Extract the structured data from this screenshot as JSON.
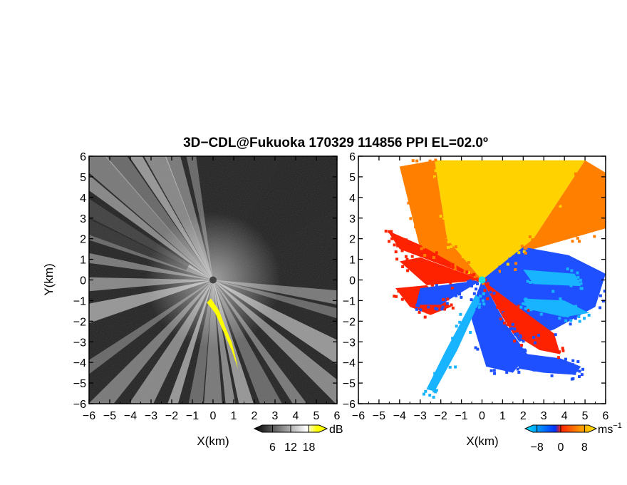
{
  "title": "3D−CDL@Fukuoka 170329 114856 PPI EL=02.0º",
  "chart_data": [
    {
      "type": "heatmap",
      "field": "backscatter",
      "xlabel": "X(km)",
      "ylabel": "Y(km)",
      "xlim": [
        -6,
        6
      ],
      "ylim": [
        -6,
        6
      ],
      "xticks": [
        "−6",
        "−5",
        "−4",
        "−3",
        "−2",
        "−1",
        "0",
        "1",
        "2",
        "3",
        "4",
        "5",
        "6"
      ],
      "yticks": [
        "−6",
        "−5",
        "−4",
        "−3",
        "−2",
        "−1",
        "0",
        "1",
        "2",
        "3",
        "4",
        "5",
        "6"
      ],
      "colorbar": {
        "unit": "dB",
        "ticks": [
          "6",
          "12",
          "18"
        ],
        "range": [
          0,
          24
        ],
        "colors": [
          "#000000",
          "#ffffff",
          "#ffff00"
        ]
      },
      "colors": {
        "background": "#1e1e1e",
        "beam": "#e8e8e8",
        "strong": "#ffff00"
      },
      "beams_deg": [
        100,
        108,
        115,
        122,
        128,
        135,
        142,
        150,
        158,
        170,
        182,
        195,
        215,
        228,
        240,
        252,
        262,
        270,
        278,
        285,
        295,
        305,
        318,
        330,
        345,
        352
      ],
      "shadow_sectors_deg": [
        [
          300,
          330
        ],
        [
          200,
          215
        ]
      ],
      "strong_echo": [
        [
          -0.1,
          -0.9
        ],
        [
          0.3,
          -1.5
        ],
        [
          0.6,
          -2.3
        ],
        [
          0.9,
          -3.0
        ],
        [
          1.1,
          -3.8
        ],
        [
          1.2,
          -4.3
        ],
        [
          0.9,
          -3.4
        ],
        [
          0.5,
          -2.5
        ],
        [
          0.1,
          -1.6
        ],
        [
          -0.3,
          -1.1
        ]
      ]
    },
    {
      "type": "heatmap",
      "field": "radial_velocity",
      "xlabel": "X(km)",
      "xlim": [
        -6,
        6
      ],
      "ylim": [
        -6,
        6
      ],
      "xticks": [
        "−6",
        "−5",
        "−4",
        "−3",
        "−2",
        "−1",
        "0",
        "1",
        "2",
        "3",
        "4",
        "5",
        "6"
      ],
      "yticks": [
        "−6",
        "−5",
        "−4",
        "−3",
        "−2",
        "−1",
        "0",
        "1",
        "2",
        "3",
        "4",
        "5",
        "6"
      ],
      "colorbar": {
        "unit": "ms",
        "unit_sup": "−1",
        "ticks": [
          "−8",
          "0",
          "8"
        ],
        "range": [
          -12,
          12
        ],
        "colors": [
          "#00e5ff",
          "#0033ff",
          "#ff2200",
          "#ffee00"
        ]
      },
      "colors": {
        "yellow": "#ffd200",
        "orange": "#ff8000",
        "red": "#ff2200",
        "blue": "#1e50ff",
        "cyan": "#19b4ff"
      },
      "regions": [
        {
          "color": "yellow",
          "poly": [
            [
              -2.3,
              5.8
            ],
            [
              5.0,
              5.8
            ],
            [
              2.5,
              2.0
            ],
            [
              0,
              0
            ],
            [
              -1.7,
              2.0
            ]
          ]
        },
        {
          "color": "orange",
          "poly": [
            [
              -4.0,
              5.5
            ],
            [
              -2.3,
              5.8
            ],
            [
              -1.7,
              2.0
            ],
            [
              0,
              0
            ],
            [
              -3.0,
              1.5
            ]
          ]
        },
        {
          "color": "orange",
          "poly": [
            [
              5.0,
              5.8
            ],
            [
              6.0,
              5.2
            ],
            [
              6.0,
              2.5
            ],
            [
              2.5,
              1.5
            ],
            [
              0,
              0
            ],
            [
              2.5,
              2.0
            ]
          ]
        },
        {
          "color": "red",
          "poly": [
            [
              -4.6,
              2.4
            ],
            [
              -3.0,
              1.7
            ],
            [
              0,
              0
            ],
            [
              -4.0,
              1.5
            ]
          ]
        },
        {
          "color": "red",
          "poly": [
            [
              -4.0,
              0.9
            ],
            [
              -3.0,
              1.1
            ],
            [
              0,
              0
            ],
            [
              -4.2,
              -0.4
            ],
            [
              -3.5,
              -1.3
            ],
            [
              -2.5,
              -1.7
            ],
            [
              -1.5,
              -1.3
            ]
          ]
        },
        {
          "color": "blue",
          "poly": [
            [
              0,
              0
            ],
            [
              2.0,
              1.6
            ],
            [
              4.2,
              1.2
            ],
            [
              6.0,
              0.3
            ],
            [
              5.5,
              -1.3
            ],
            [
              3.5,
              -2.4
            ],
            [
              1.8,
              -3.0
            ],
            [
              1.0,
              -1.8
            ]
          ]
        },
        {
          "color": "blue",
          "poly": [
            [
              0,
              0
            ],
            [
              -3.0,
              -0.4
            ],
            [
              -3.2,
              -1.2
            ],
            [
              -2.0,
              -1.2
            ]
          ]
        },
        {
          "color": "red",
          "poly": [
            [
              0,
              0
            ],
            [
              1.0,
              -1.8
            ],
            [
              1.5,
              -2.6
            ],
            [
              2.8,
              -3.4
            ],
            [
              3.8,
              -3.6
            ],
            [
              3.5,
              -2.6
            ],
            [
              2.0,
              -1.5
            ]
          ]
        },
        {
          "color": "blue",
          "poly": [
            [
              0,
              0
            ],
            [
              -0.6,
              -1.6
            ],
            [
              0.2,
              -4.2
            ],
            [
              1.5,
              -4.5
            ],
            [
              2.2,
              -3.6
            ],
            [
              1.2,
              -2.2
            ]
          ]
        },
        {
          "color": "blue",
          "poly": [
            [
              1.5,
              -3.5
            ],
            [
              3.8,
              -3.8
            ],
            [
              4.8,
              -4.2
            ],
            [
              4.5,
              -4.6
            ],
            [
              3.0,
              -4.5
            ],
            [
              1.8,
              -4.3
            ]
          ]
        },
        {
          "color": "cyan",
          "poly": [
            [
              -0.3,
              -0.7
            ],
            [
              -1.8,
              -3.5
            ],
            [
              -2.7,
              -5.3
            ],
            [
              -2.3,
              -5.4
            ],
            [
              -1.2,
              -3.4
            ],
            [
              -0.1,
              -1.0
            ]
          ]
        },
        {
          "color": "cyan",
          "poly": [
            [
              2.0,
              -0.9
            ],
            [
              4.0,
              -1.0
            ],
            [
              5.2,
              -1.6
            ],
            [
              4.0,
              -1.8
            ],
            [
              2.2,
              -1.4
            ]
          ]
        },
        {
          "color": "cyan",
          "poly": [
            [
              2.0,
              0.5
            ],
            [
              4.5,
              0.3
            ],
            [
              4.8,
              -0.3
            ],
            [
              2.5,
              -0.2
            ]
          ]
        }
      ]
    }
  ]
}
